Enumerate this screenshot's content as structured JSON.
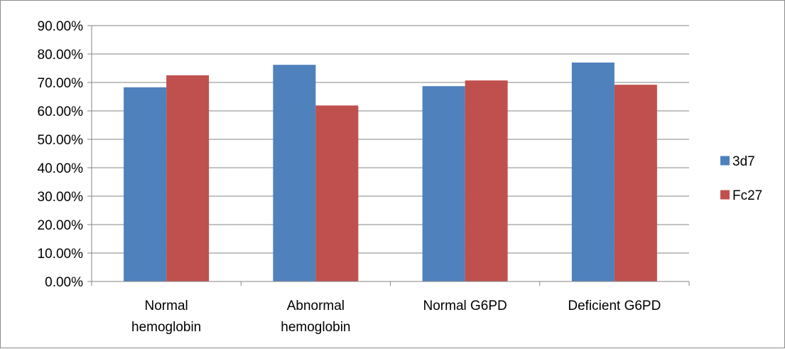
{
  "chart_data": {
    "type": "bar",
    "categories": [
      [
        "Normal",
        "hemoglobin"
      ],
      [
        "Abnormal",
        "hemoglobin"
      ],
      [
        "Normal G6PD"
      ],
      [
        "Deficient G6PD"
      ]
    ],
    "series": [
      {
        "name": "3d7",
        "color": "#4f81bd",
        "values": [
          0.683,
          0.762,
          0.687,
          0.77
        ]
      },
      {
        "name": "Fc27",
        "color": "#c0504d",
        "values": [
          0.725,
          0.619,
          0.707,
          0.692
        ]
      }
    ],
    "ylim": [
      0,
      0.9
    ],
    "yticks": [
      0,
      0.1,
      0.2,
      0.3,
      0.4,
      0.5,
      0.6,
      0.7,
      0.8,
      0.9
    ],
    "ytick_labels": [
      "0.00%",
      "10.00%",
      "20.00%",
      "30.00%",
      "40.00%",
      "50.00%",
      "60.00%",
      "70.00%",
      "80.00%",
      "90.00%"
    ],
    "title": "",
    "xlabel": "",
    "ylabel": "",
    "grid": true,
    "legend_position": "right",
    "gridline_color": "#868686",
    "axis_color": "#868686"
  }
}
